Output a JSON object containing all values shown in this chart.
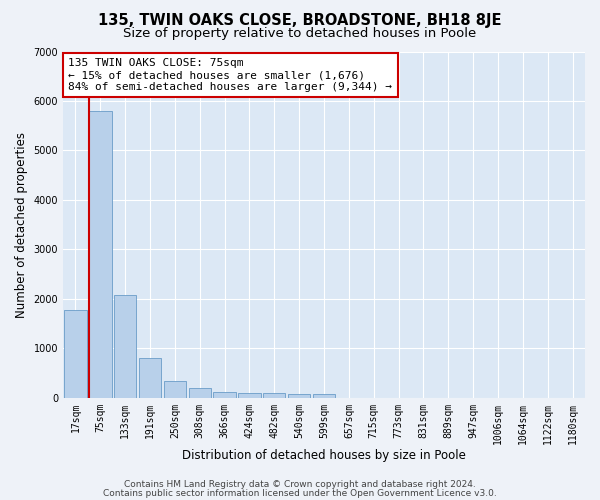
{
  "title": "135, TWIN OAKS CLOSE, BROADSTONE, BH18 8JE",
  "subtitle": "Size of property relative to detached houses in Poole",
  "xlabel": "Distribution of detached houses by size in Poole",
  "ylabel": "Number of detached properties",
  "categories": [
    "17sqm",
    "75sqm",
    "133sqm",
    "191sqm",
    "250sqm",
    "308sqm",
    "366sqm",
    "424sqm",
    "482sqm",
    "540sqm",
    "599sqm",
    "657sqm",
    "715sqm",
    "773sqm",
    "831sqm",
    "889sqm",
    "947sqm",
    "1006sqm",
    "1064sqm",
    "1122sqm",
    "1180sqm"
  ],
  "values": [
    1780,
    5800,
    2080,
    810,
    350,
    205,
    130,
    110,
    105,
    85,
    80,
    0,
    0,
    0,
    0,
    0,
    0,
    0,
    0,
    0,
    0
  ],
  "red_line_index": 1,
  "bar_color": "#b8d0ea",
  "bar_edge_color": "#6a9cc8",
  "red_line_color": "#cc0000",
  "annotation_text": "135 TWIN OAKS CLOSE: 75sqm\n← 15% of detached houses are smaller (1,676)\n84% of semi-detached houses are larger (9,344) →",
  "annotation_box_color": "#ffffff",
  "annotation_box_edge": "#cc0000",
  "ylim": [
    0,
    7000
  ],
  "yticks": [
    0,
    1000,
    2000,
    3000,
    4000,
    5000,
    6000,
    7000
  ],
  "footer1": "Contains HM Land Registry data © Crown copyright and database right 2024.",
  "footer2": "Contains public sector information licensed under the Open Government Licence v3.0.",
  "fig_bg_color": "#eef2f8",
  "plot_bg_color": "#dce8f5",
  "grid_color": "#ffffff",
  "title_fontsize": 10.5,
  "subtitle_fontsize": 9.5,
  "axis_label_fontsize": 8.5,
  "tick_fontsize": 7,
  "annotation_fontsize": 8,
  "footer_fontsize": 6.5
}
